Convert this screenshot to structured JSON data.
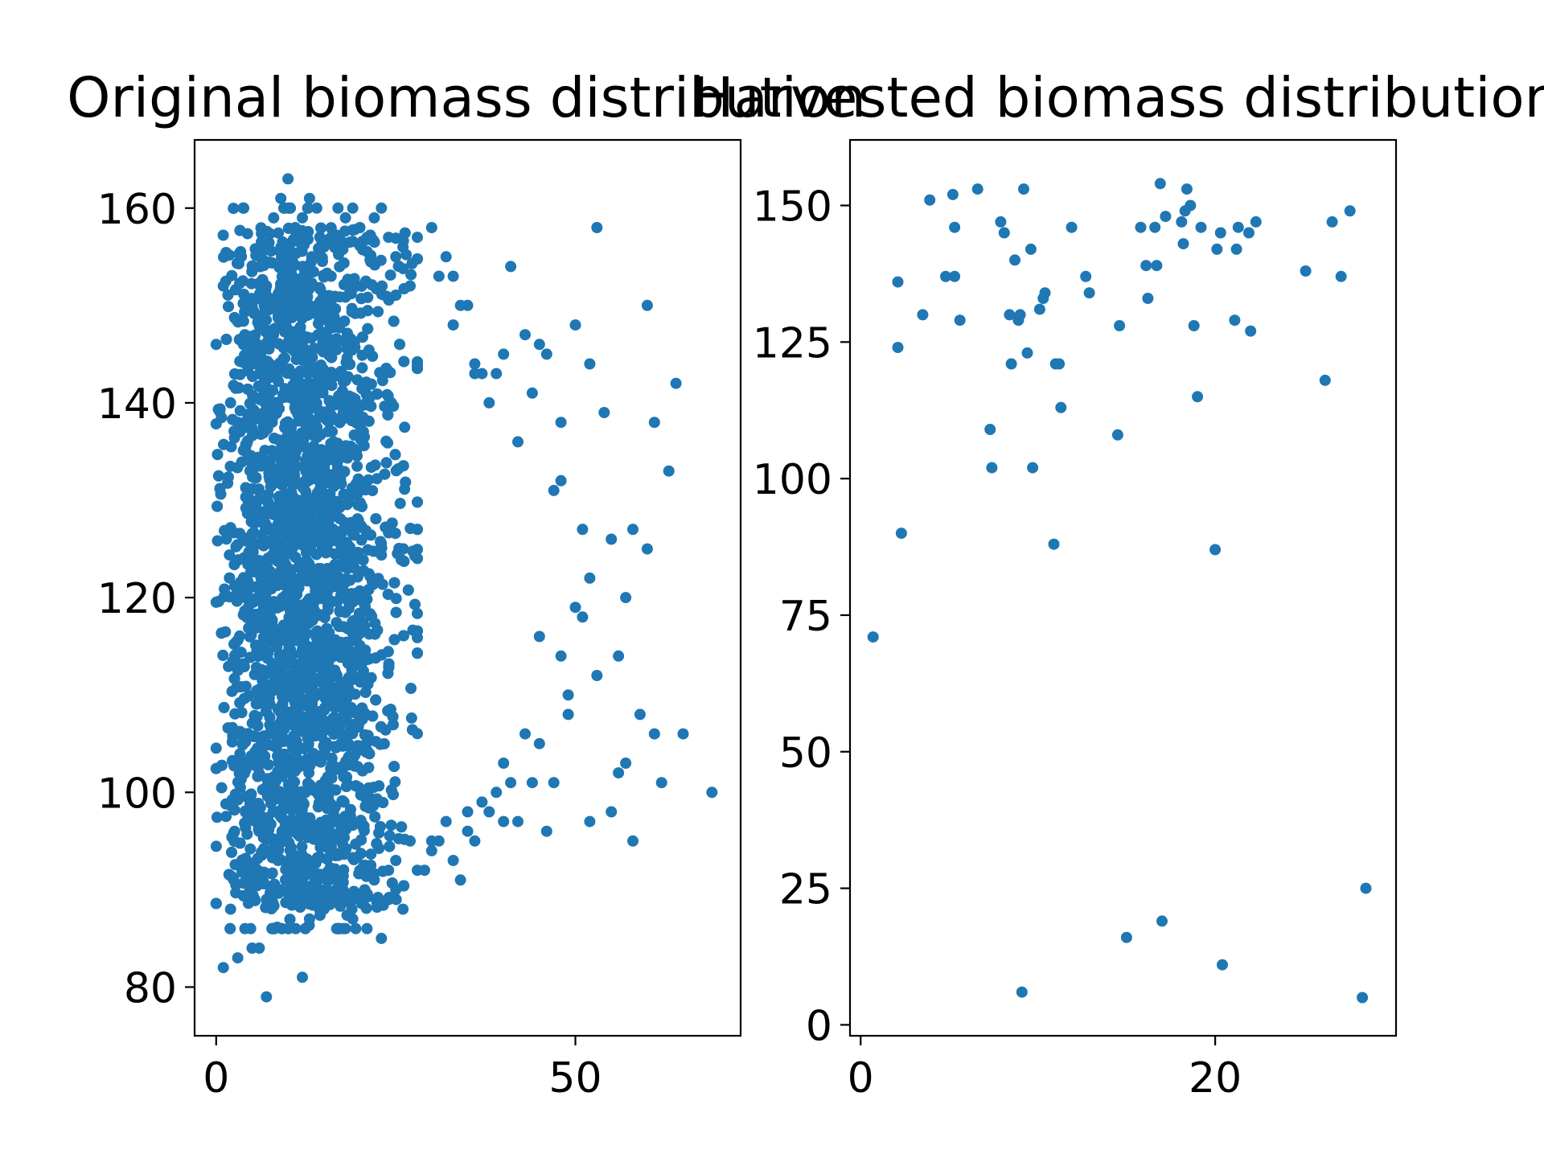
{
  "chart_data": [
    {
      "type": "scatter",
      "title": "Original biomass distribution",
      "xlabel": "",
      "ylabel": "",
      "xlim": [
        -3,
        73
      ],
      "ylim": [
        75,
        167
      ],
      "xticks": [
        0,
        50
      ],
      "yticks": [
        80,
        100,
        120,
        140,
        160
      ],
      "x_tick_labels": [
        "0",
        "50"
      ],
      "y_tick_labels": [
        "80",
        "100",
        "120",
        "140",
        "160"
      ],
      "grid": false,
      "color": "#1f77b4",
      "cluster": {
        "x_range": [
          0,
          28
        ],
        "y_range": [
          88,
          158
        ],
        "x_mode": 8,
        "count": 4200,
        "note": "dense cloud of points"
      },
      "series": [
        {
          "x": [
            0,
            1,
            2,
            3,
            4,
            5,
            6,
            7,
            8,
            9,
            10,
            11,
            12,
            13,
            14,
            15,
            16,
            17,
            18,
            19,
            20,
            21,
            22,
            23,
            24,
            25,
            26,
            27,
            28,
            30,
            31,
            32,
            33,
            34,
            35,
            36,
            37,
            38,
            39,
            40,
            41,
            42,
            43,
            44,
            45,
            46,
            47,
            48,
            49,
            50,
            51,
            52,
            53,
            54,
            55,
            56,
            57,
            58,
            60,
            61,
            63,
            64,
            69,
            2,
            3,
            5,
            7,
            8,
            10,
            11,
            12,
            14,
            16,
            17,
            19,
            21,
            22,
            24,
            26,
            27,
            29,
            31,
            33,
            34,
            36,
            38,
            40,
            42,
            44,
            46,
            47,
            49,
            52,
            55,
            58,
            61,
            1,
            4,
            6,
            9,
            13,
            15,
            18,
            20,
            23,
            25,
            28,
            30,
            32,
            35,
            37,
            39,
            41,
            43,
            45,
            48,
            50,
            53,
            56,
            59,
            62,
            65,
            7,
            11,
            25,
            30,
            35,
            40,
            45,
            52,
            57,
            60,
            33,
            36,
            48,
            51,
            20,
            24
          ],
          "y": [
            146,
            152,
            140,
            138,
            147,
            150,
            143,
            152,
            159,
            161,
            163,
            158,
            159,
            161,
            160,
            156,
            153,
            157,
            159,
            160,
            158,
            157,
            159,
            160,
            157,
            155,
            156,
            152,
            157,
            158,
            153,
            155,
            153,
            150,
            150,
            144,
            143,
            140,
            143,
            145,
            154,
            136,
            147,
            141,
            146,
            145,
            131,
            138,
            110,
            148,
            127,
            144,
            158,
            139,
            126,
            102,
            120,
            127,
            150,
            138,
            133,
            142,
            100,
            88,
            83,
            84,
            79,
            86,
            91,
            96,
            81,
            93,
            95,
            86,
            87,
            86,
            91,
            89,
            88,
            95,
            92,
            95,
            93,
            91,
            95,
            98,
            97,
            97,
            101,
            96,
            101,
            108,
            97,
            98,
            95,
            106,
            82,
            86,
            84,
            90,
            87,
            88,
            86,
            89,
            85,
            90,
            92,
            94,
            97,
            96,
            99,
            100,
            101,
            106,
            105,
            114,
            119,
            112,
            114,
            108,
            101,
            106,
            89,
            91,
            93,
            95,
            98,
            103,
            116,
            122,
            103,
            125,
            148,
            143,
            132,
            118,
            92,
            92
          ]
        }
      ]
    },
    {
      "type": "scatter",
      "title": "Harvested biomass distribution",
      "xlabel": "",
      "ylabel": "",
      "xlim": [
        -0.6,
        30.2
      ],
      "ylim": [
        -2,
        162
      ],
      "xticks": [
        0,
        20
      ],
      "yticks": [
        0,
        25,
        50,
        75,
        100,
        125,
        150
      ],
      "x_tick_labels": [
        "0",
        "20"
      ],
      "y_tick_labels": [
        "0",
        "25",
        "50",
        "75",
        "100",
        "125",
        "150"
      ],
      "grid": false,
      "color": "#1f77b4",
      "series": [
        {
          "x": [
            0.7,
            2.1,
            2.1,
            2.3,
            3.5,
            3.9,
            4.8,
            5.2,
            5.3,
            5.3,
            5.6,
            6.6,
            7.3,
            7.4,
            7.9,
            8.1,
            8.4,
            8.5,
            8.7,
            8.9,
            9.0,
            9.1,
            9.2,
            9.4,
            9.6,
            9.7,
            10.1,
            10.3,
            10.4,
            10.9,
            11.0,
            11.2,
            11.3,
            11.9,
            12.7,
            12.9,
            14.5,
            14.6,
            15.0,
            15.8,
            16.1,
            16.2,
            16.6,
            16.7,
            16.9,
            17.0,
            17.2,
            18.1,
            18.2,
            18.3,
            18.4,
            18.6,
            18.8,
            19.0,
            19.2,
            20.0,
            20.1,
            20.3,
            20.4,
            21.1,
            21.2,
            21.3,
            21.9,
            22.0,
            22.3,
            25.1,
            26.2,
            26.6,
            27.1,
            27.6,
            28.3,
            28.5
          ],
          "y": [
            71,
            124,
            136,
            90,
            130,
            151,
            137,
            152,
            137,
            146,
            129,
            153,
            109,
            102,
            147,
            145,
            130,
            121,
            140,
            129,
            130,
            6,
            153,
            123,
            142,
            102,
            131,
            133,
            134,
            88,
            121,
            121,
            113,
            146,
            137,
            134,
            108,
            128,
            16,
            146,
            139,
            133,
            146,
            139,
            154,
            19,
            148,
            147,
            143,
            149,
            153,
            150,
            128,
            115,
            146,
            87,
            142,
            145,
            11,
            129,
            142,
            146,
            145,
            127,
            147,
            138,
            118,
            147,
            137,
            149,
            5,
            25
          ]
        }
      ]
    }
  ]
}
